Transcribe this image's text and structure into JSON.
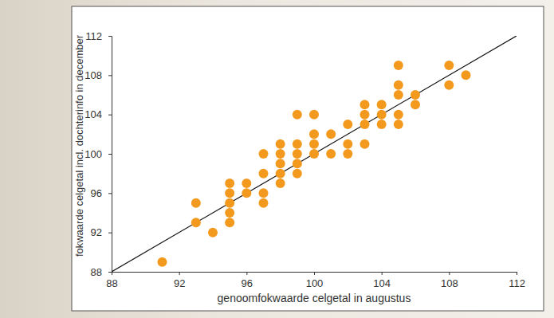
{
  "chart_data": {
    "type": "scatter",
    "x_label": "genoomfokwaarde celgetal in augustus",
    "y_label": "fokwaarde celgetal incl. dochterinfo in december",
    "x": [
      91,
      93,
      93,
      94,
      95,
      95,
      95,
      95,
      95,
      96,
      96,
      97,
      97,
      97,
      97,
      98,
      98,
      98,
      98,
      98,
      99,
      99,
      99,
      99,
      99,
      100,
      100,
      100,
      100,
      101,
      101,
      102,
      102,
      102,
      103,
      103,
      103,
      103,
      104,
      104,
      104,
      105,
      105,
      105,
      105,
      105,
      106,
      106,
      108,
      108,
      109
    ],
    "values": [
      89,
      95,
      93,
      92,
      97,
      96,
      95,
      94,
      93,
      97,
      96,
      100,
      98,
      96,
      95,
      101,
      100,
      99,
      98,
      97,
      104,
      101,
      100,
      99,
      98,
      104,
      102,
      101,
      100,
      102,
      100,
      103,
      101,
      100,
      105,
      104,
      103,
      101,
      105,
      104,
      103,
      109,
      107,
      106,
      104,
      103,
      106,
      105,
      109,
      107,
      108
    ],
    "color": "#f39a1e",
    "marker": "circle",
    "reference_line": {
      "x": [
        88,
        112
      ],
      "y": [
        88,
        112
      ]
    },
    "xlim": [
      88,
      112
    ],
    "ylim": [
      88,
      112
    ],
    "xticks": [
      88,
      92,
      96,
      100,
      104,
      108,
      112
    ],
    "yticks": [
      88,
      92,
      96,
      100,
      104,
      108,
      112
    ],
    "grid": false
  }
}
